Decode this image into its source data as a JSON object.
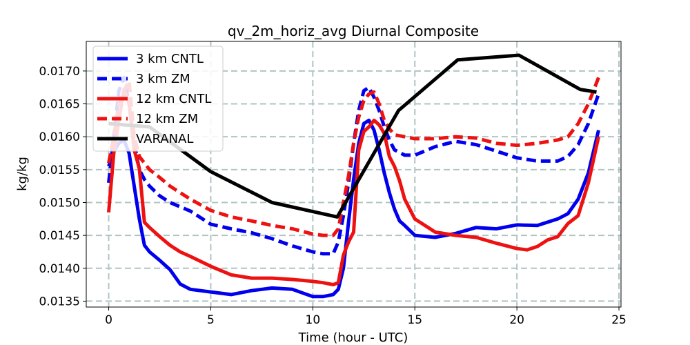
{
  "chart_data": {
    "type": "line",
    "title": "qv_2m_horiz_avg Diurnal Composite",
    "xlabel": "Time (hour - UTC)",
    "ylabel": "kg/kg",
    "xlim": [
      -1.1,
      25.1
    ],
    "ylim": [
      0.01341,
      0.01745
    ],
    "xticks": [
      0,
      5,
      10,
      15,
      20,
      25
    ],
    "xtick_labels": [
      "0",
      "5",
      "10",
      "15",
      "20",
      "25"
    ],
    "yticks": [
      0.0135,
      0.014,
      0.0145,
      0.015,
      0.0155,
      0.016,
      0.0165,
      0.017
    ],
    "ytick_labels": [
      "0.0135",
      "0.0140",
      "0.0145",
      "0.0150",
      "0.0155",
      "0.0160",
      "0.0165",
      "0.0170"
    ],
    "grid": true,
    "legend_position": "upper-left",
    "series": [
      {
        "name": "3 km CNTL",
        "color": "#0000ee",
        "style": "solid",
        "x": [
          0,
          0.25,
          0.5,
          0.75,
          1,
          1.25,
          1.5,
          1.75,
          2,
          2.5,
          3,
          3.5,
          4,
          5,
          6,
          7,
          8,
          9,
          10,
          10.5,
          11,
          11.25,
          11.5,
          11.75,
          12,
          12.25,
          12.5,
          12.75,
          13,
          13.25,
          13.5,
          13.75,
          14,
          14.25,
          14.5,
          15,
          16,
          17,
          18,
          19,
          20,
          21,
          22,
          22.5,
          23,
          23.5,
          24
        ],
        "values": [
          0.01555,
          0.01578,
          0.0159,
          0.01595,
          0.01575,
          0.01525,
          0.01475,
          0.01435,
          0.01425,
          0.01412,
          0.01398,
          0.01376,
          0.01368,
          0.01364,
          0.0136,
          0.01366,
          0.0137,
          0.01368,
          0.01357,
          0.01357,
          0.0136,
          0.01368,
          0.014,
          0.0147,
          0.01535,
          0.0159,
          0.0162,
          0.01625,
          0.0161,
          0.0158,
          0.01545,
          0.01515,
          0.0149,
          0.01472,
          0.01465,
          0.0145,
          0.01447,
          0.01453,
          0.01462,
          0.0146,
          0.01466,
          0.01465,
          0.01475,
          0.01483,
          0.01505,
          0.01545,
          0.0161
        ]
      },
      {
        "name": "3 km ZM",
        "color": "#0000ee",
        "style": "dashed",
        "x": [
          0,
          0.25,
          0.5,
          0.75,
          1,
          1.25,
          1.5,
          1.75,
          2,
          2.5,
          3,
          4,
          5,
          6,
          7,
          8,
          9,
          10,
          10.5,
          11,
          11.25,
          11.5,
          11.75,
          12,
          12.25,
          12.5,
          12.75,
          13,
          13.25,
          13.5,
          13.75,
          14,
          14.5,
          15,
          16,
          17,
          18,
          19,
          20,
          21,
          22,
          22.5,
          23,
          23.5,
          24
        ],
        "values": [
          0.0153,
          0.016,
          0.0167,
          0.0169,
          0.0165,
          0.0159,
          0.0155,
          0.01535,
          0.01525,
          0.0151,
          0.015,
          0.01487,
          0.01467,
          0.0146,
          0.01454,
          0.01445,
          0.01434,
          0.01425,
          0.01422,
          0.01422,
          0.0144,
          0.0148,
          0.0153,
          0.0159,
          0.0164,
          0.0167,
          0.01675,
          0.0166,
          0.0164,
          0.01615,
          0.01595,
          0.0158,
          0.01572,
          0.01572,
          0.01585,
          0.01593,
          0.01588,
          0.01578,
          0.01568,
          0.01563,
          0.01563,
          0.0157,
          0.01588,
          0.0162,
          0.01665
        ]
      },
      {
        "name": "12 km CNTL",
        "color": "#ee1111",
        "style": "solid",
        "x": [
          0,
          0.25,
          0.5,
          0.75,
          1,
          1.25,
          1.5,
          1.75,
          2,
          2.5,
          3,
          3.5,
          4,
          5,
          6,
          7,
          8,
          9,
          10,
          10.5,
          11,
          11.25,
          11.5,
          11.75,
          12,
          12.25,
          12.5,
          12.75,
          13,
          13.25,
          13.5,
          13.75,
          14,
          14.25,
          14.5,
          15,
          16,
          17,
          18,
          19,
          20,
          20.5,
          21,
          21.5,
          22,
          22.5,
          23,
          23.5,
          24
        ],
        "values": [
          0.01485,
          0.01575,
          0.01625,
          0.01672,
          0.0165,
          0.0158,
          0.01552,
          0.0147,
          0.01462,
          0.01448,
          0.01435,
          0.01425,
          0.01418,
          0.01403,
          0.0139,
          0.01385,
          0.01385,
          0.01383,
          0.0138,
          0.01378,
          0.01375,
          0.01378,
          0.0142,
          0.0144,
          0.01455,
          0.0158,
          0.01608,
          0.01615,
          0.01625,
          0.01618,
          0.01605,
          0.0157,
          0.01555,
          0.01533,
          0.01505,
          0.01475,
          0.01455,
          0.0145,
          0.01447,
          0.01438,
          0.0143,
          0.01428,
          0.01433,
          0.01443,
          0.01448,
          0.01468,
          0.0148,
          0.0153,
          0.016
        ]
      },
      {
        "name": "12 km ZM",
        "color": "#ee1111",
        "style": "dashed",
        "x": [
          0,
          0.25,
          0.5,
          0.75,
          1,
          1.25,
          1.5,
          1.75,
          2,
          2.5,
          3,
          4,
          5,
          6,
          7,
          8,
          9,
          10,
          10.5,
          11,
          11.25,
          11.5,
          11.75,
          12,
          12.25,
          12.5,
          12.75,
          13,
          13.25,
          13.5,
          13.75,
          14,
          14.5,
          15,
          16,
          17,
          18,
          19,
          20,
          21,
          22,
          22.5,
          23,
          23.5,
          24
        ],
        "values": [
          0.0156,
          0.016,
          0.0165,
          0.0167,
          0.01685,
          0.016,
          0.0157,
          0.0156,
          0.0155,
          0.01538,
          0.01525,
          0.01505,
          0.01488,
          0.01478,
          0.01472,
          0.01465,
          0.0146,
          0.01452,
          0.0145,
          0.0145,
          0.0146,
          0.015,
          0.0154,
          0.0159,
          0.0163,
          0.01655,
          0.01665,
          0.01668,
          0.0165,
          0.01625,
          0.01612,
          0.01603,
          0.016,
          0.01597,
          0.01597,
          0.016,
          0.01598,
          0.0159,
          0.01587,
          0.0159,
          0.01595,
          0.016,
          0.0162,
          0.0165,
          0.0169
        ]
      },
      {
        "name": "VARANAL",
        "color": "#000000",
        "style": "solid",
        "x": [
          0,
          2,
          5,
          8,
          11.2,
          14.2,
          17.1,
          20.1,
          23.1,
          23.9
        ],
        "values": [
          0.0162,
          0.01615,
          0.01547,
          0.015,
          0.01478,
          0.0164,
          0.01717,
          0.01724,
          0.01672,
          0.01668
        ]
      }
    ]
  }
}
